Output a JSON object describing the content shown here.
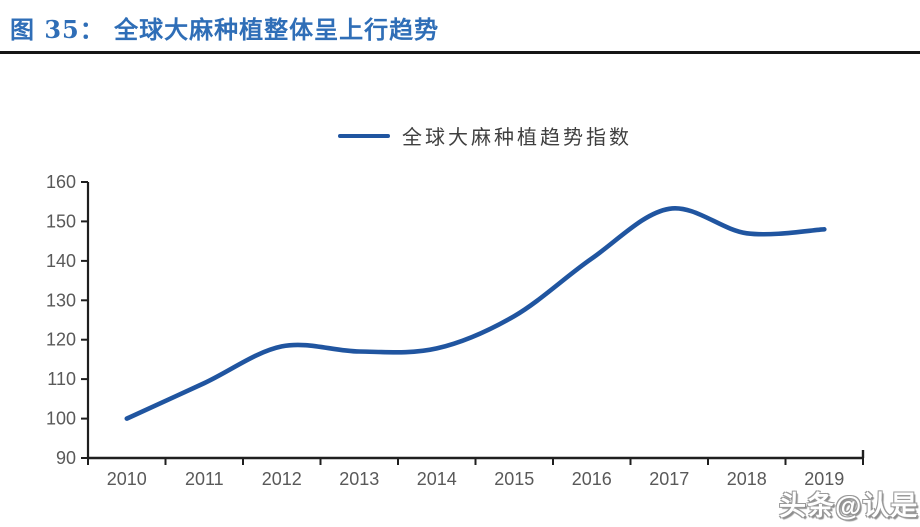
{
  "header": {
    "title": "图 35： 全球大麻种植整体呈上行趋势"
  },
  "legend": {
    "label": "全球大麻种植趋势指数"
  },
  "watermark": "头条@认是",
  "chart_data": {
    "type": "line",
    "title": "图 35： 全球大麻种植整体呈上行趋势",
    "x": [
      2010,
      2011,
      2012,
      2013,
      2014,
      2015,
      2016,
      2017,
      2018,
      2019
    ],
    "series": [
      {
        "name": "全球大麻种植趋势指数",
        "values": [
          100,
          109,
          118.3,
          117,
          117.8,
          126,
          140.6,
          153.2,
          147,
          148
        ]
      }
    ],
    "xlabel": "",
    "ylabel": "",
    "ylim": [
      90,
      160
    ],
    "yticks": [
      90,
      100,
      110,
      120,
      130,
      140,
      150,
      160
    ],
    "grid": false,
    "smooth": true,
    "legend_position": "top-center",
    "line_color": "#2055A0",
    "axis_color": "#1f1f1f",
    "tick_label_color": "#595959",
    "title_color": "#2F6EB7"
  }
}
